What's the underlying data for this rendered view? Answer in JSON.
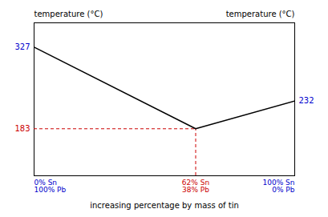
{
  "chart_data": {
    "type": "line",
    "ylabel": "temperature (°C)",
    "y2label": "temperature (°C)",
    "xlabel": "increasing percentage by mass of tin",
    "x": [
      0,
      62,
      100
    ],
    "series": [
      {
        "values": [
          327,
          183,
          232
        ],
        "color": "#000000"
      }
    ],
    "xlim": [
      0,
      100
    ],
    "ylim": [
      100,
      370
    ],
    "tick_labels": false,
    "annotations": [
      {
        "text": "327",
        "x": 0,
        "y": 327,
        "color": "#0000cc"
      },
      {
        "text": "183",
        "x": 0,
        "y": 183,
        "color": "#cc0000"
      },
      {
        "text": "232",
        "x": 100,
        "y": 232,
        "color": "#0000cc"
      },
      {
        "text": "0% Sn\n100% Pb",
        "x": 0,
        "color": "#0000cc"
      },
      {
        "text": "62% Sn\n38% Pb",
        "x": 62,
        "color": "#cc0000"
      },
      {
        "text": "100% Sn\n0% Pb",
        "x": 100,
        "color": "#0000cc"
      }
    ],
    "reference_lines": [
      {
        "x": 62,
        "y": 183,
        "color": "#cc0000",
        "line_style": "dashed"
      }
    ]
  }
}
